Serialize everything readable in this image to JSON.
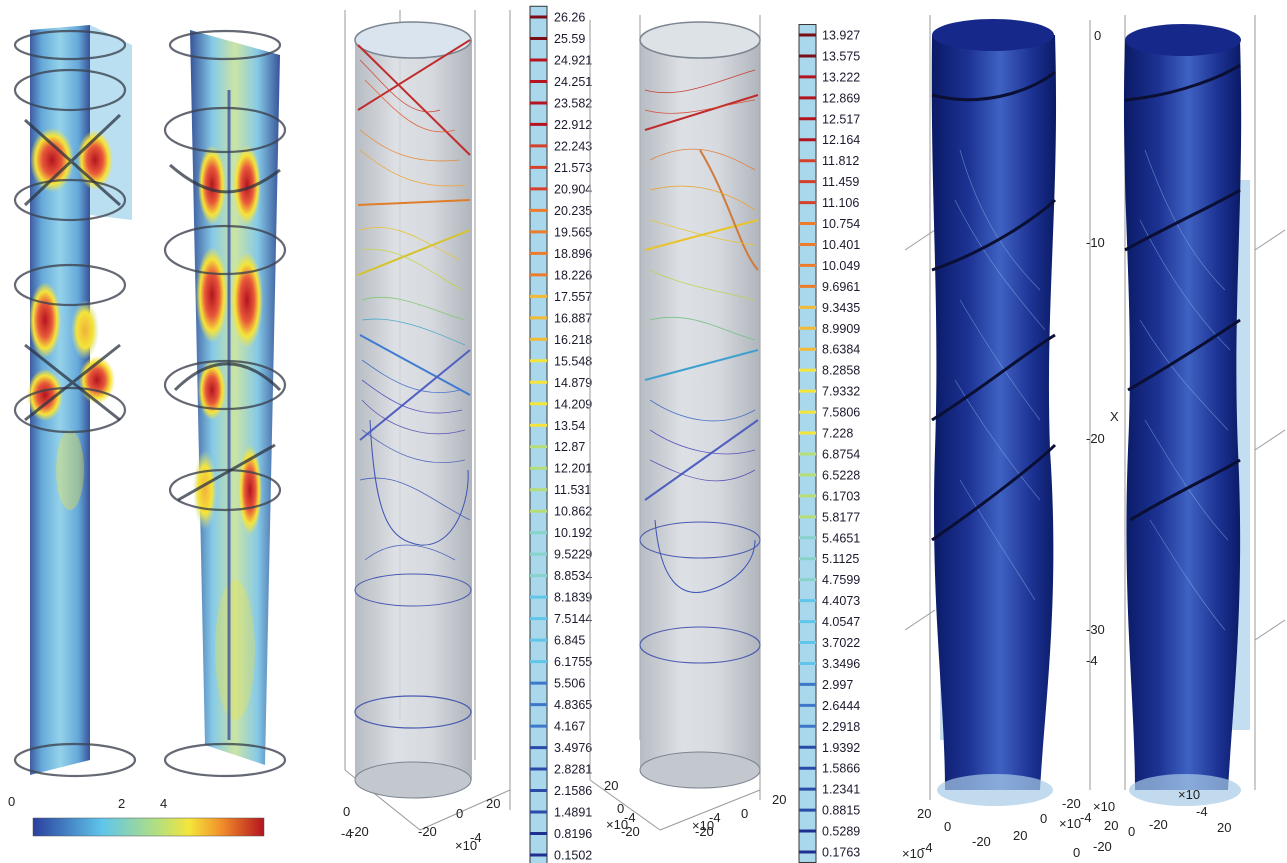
{
  "colors": {
    "jet_low": "#1e2f8f",
    "jet_cyan": "#5fc6ea",
    "jet_yellow": "#f5e43a",
    "jet_high": "#b3141f",
    "streamline_dark": "#0d1f73",
    "streamline_light": "#8fb8e6",
    "tube_grey": "#c9cdd3"
  },
  "panels": [
    {
      "id": "slice-left",
      "icon": "helical-tube-slice-icon",
      "colorbar_labels": [],
      "axis_ticks": [
        "0",
        "2",
        "4"
      ]
    },
    {
      "id": "contours-1",
      "icon": "contour-cylinder-icon",
      "colorbar_labels": [
        "26.26",
        "25.59",
        "24.921",
        "24.251",
        "23.582",
        "22.912",
        "22.243",
        "21.573",
        "20.904",
        "20.235",
        "19.565",
        "18.896",
        "18.226",
        "17.557",
        "16.887",
        "16.218",
        "15.548",
        "14.879",
        "14.209",
        "13.54",
        "12.87",
        "12.201",
        "11.531",
        "10.862",
        "10.192",
        "9.5229",
        "8.8534",
        "8.1839",
        "7.5144",
        "6.845",
        "6.1755",
        "5.506",
        "4.8365",
        "4.167",
        "3.4976",
        "2.8281",
        "2.1586",
        "1.4891",
        "0.8196",
        "0.1502"
      ],
      "axis_ticks": [
        "0",
        "-20",
        "-20",
        "0",
        "20",
        "×10",
        "-4",
        "-4"
      ]
    },
    {
      "id": "contours-2",
      "icon": "contour-cylinder-icon",
      "colorbar_labels": [
        "13.927",
        "13.575",
        "13.222",
        "12.869",
        "12.517",
        "12.164",
        "11.812",
        "11.459",
        "11.106",
        "10.754",
        "10.401",
        "10.049",
        "9.6961",
        "9.3435",
        "8.9909",
        "8.6384",
        "8.2858",
        "7.9332",
        "7.5806",
        "7.228",
        "6.8754",
        "6.5228",
        "6.1703",
        "5.8177",
        "5.4651",
        "5.1125",
        "4.7599",
        "4.4073",
        "4.0547",
        "3.7022",
        "3.3496",
        "2.997",
        "2.6444",
        "2.2918",
        "1.9392",
        "1.5866",
        "1.2341",
        "0.8815",
        "0.5289",
        "0.1763"
      ],
      "axis_ticks": [
        "20",
        "0",
        "-20",
        "-20",
        "0",
        "20",
        "×10",
        "-4",
        "×10",
        "-4"
      ]
    },
    {
      "id": "streamlines",
      "icon": "streamline-tube-icon",
      "colorbar_labels": [],
      "axis_ticks": [
        "0",
        "-10",
        "-20",
        "-30",
        "20",
        "0",
        "-20",
        "20",
        "0",
        "-20",
        "20",
        "0",
        "-20",
        "×10",
        "-4",
        "×10",
        "-4",
        "×10",
        "-4",
        "20",
        "0",
        "-20",
        "×10",
        "-4",
        "X",
        ")",
        "×"
      ]
    }
  ]
}
